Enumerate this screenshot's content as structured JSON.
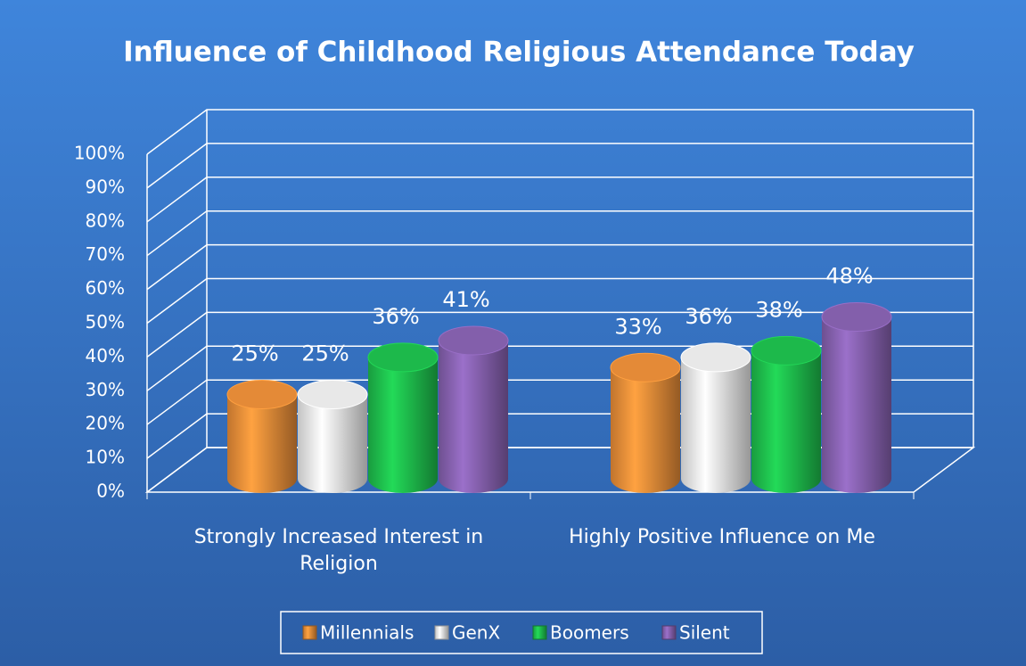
{
  "chart_data": {
    "type": "bar3d",
    "title": "Influence of Childhood Religious Attendance Today",
    "categories": [
      "Strongly Increased Interest in Religion",
      "Highly Positive Influence on Me"
    ],
    "series": [
      {
        "name": "Millennials",
        "color": "#f0913a",
        "values": [
          25,
          33
        ],
        "value_labels": [
          "25%",
          "33%"
        ]
      },
      {
        "name": "GenX",
        "color": "#f4f4f4",
        "values": [
          25,
          36
        ],
        "value_labels": [
          "25%",
          "36%"
        ]
      },
      {
        "name": "Boomers",
        "color": "#1fc34f",
        "values": [
          36,
          38
        ],
        "value_labels": [
          "36%",
          "38%"
        ]
      },
      {
        "name": "Silent",
        "color": "#8a64b4",
        "values": [
          41,
          48
        ],
        "value_labels": [
          "41%",
          "48%"
        ]
      }
    ],
    "ylim": [
      0,
      100
    ],
    "yticks": [
      {
        "value": 0,
        "label": "0%"
      },
      {
        "value": 10,
        "label": "10%"
      },
      {
        "value": 20,
        "label": "20%"
      },
      {
        "value": 30,
        "label": "30%"
      },
      {
        "value": 40,
        "label": "40%"
      },
      {
        "value": 50,
        "label": "50%"
      },
      {
        "value": 60,
        "label": "60%"
      },
      {
        "value": 70,
        "label": "70%"
      },
      {
        "value": 80,
        "label": "80%"
      },
      {
        "value": 90,
        "label": "90%"
      },
      {
        "value": 100,
        "label": "100%"
      }
    ],
    "grid": true,
    "legend": "bottom"
  }
}
